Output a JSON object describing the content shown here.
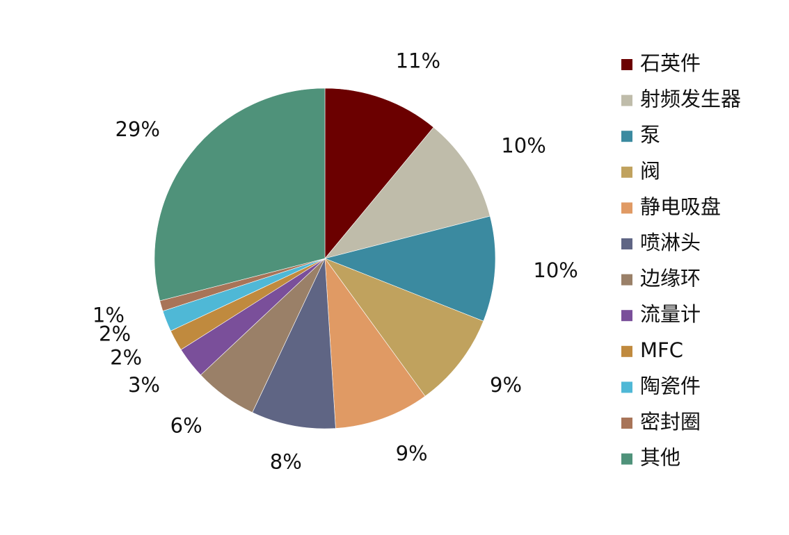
{
  "chart_data": {
    "type": "pie",
    "categories": [
      "石英件",
      "射频发生器",
      "泵",
      "阀",
      "静电吸盘",
      "喷淋头",
      "边缘环",
      "流量计",
      "MFC",
      "陶瓷件",
      "密封圈",
      "其他"
    ],
    "values": [
      11,
      10,
      10,
      9,
      9,
      8,
      6,
      3,
      2,
      2,
      1,
      29
    ],
    "value_labels": [
      "11%",
      "10%",
      "10%",
      "9%",
      "9%",
      "8%",
      "6%",
      "3%",
      "2%",
      "2%",
      "1%",
      "29%"
    ],
    "colors": [
      "#6b0000",
      "#bfbcaa",
      "#3b8aa0",
      "#c0a25e",
      "#e09a64",
      "#5f6584",
      "#9a8068",
      "#7a4f9a",
      "#c08a3e",
      "#4fb8d6",
      "#a87458",
      "#4f927a"
    ],
    "legend": "right"
  }
}
